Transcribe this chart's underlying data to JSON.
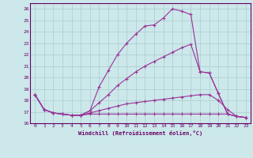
{
  "xlabel": "Windchill (Refroidissement éolien,°C)",
  "background_color": "#cce8ea",
  "grid_color": "#aacccc",
  "line_color": "#993399",
  "xlim": [
    -0.5,
    23.5
  ],
  "ylim": [
    16,
    26.5
  ],
  "yticks": [
    16,
    17,
    18,
    19,
    20,
    21,
    22,
    23,
    24,
    25,
    26
  ],
  "xticks": [
    0,
    1,
    2,
    3,
    4,
    5,
    6,
    7,
    8,
    9,
    10,
    11,
    12,
    13,
    14,
    15,
    16,
    17,
    18,
    19,
    20,
    21,
    22,
    23
  ],
  "series": [
    {
      "x": [
        0,
        1,
        2,
        3,
        4,
        5,
        6,
        7,
        8,
        9,
        10,
        11,
        12,
        13,
        14,
        15,
        16,
        17,
        18,
        19,
        20,
        21,
        22,
        23
      ],
      "y": [
        18.5,
        17.2,
        16.9,
        16.8,
        16.7,
        16.7,
        17.1,
        19.2,
        20.6,
        22.0,
        23.0,
        23.8,
        24.5,
        24.6,
        25.2,
        26.0,
        25.8,
        25.5,
        20.5,
        20.4,
        18.6,
        16.8,
        16.6,
        16.5
      ]
    },
    {
      "x": [
        0,
        1,
        2,
        3,
        4,
        5,
        6,
        7,
        8,
        9,
        10,
        11,
        12,
        13,
        14,
        15,
        16,
        17,
        18,
        19,
        20,
        21,
        22,
        23
      ],
      "y": [
        18.5,
        17.2,
        16.9,
        16.8,
        16.7,
        16.7,
        17.1,
        17.8,
        18.5,
        19.3,
        19.9,
        20.5,
        21.0,
        21.4,
        21.8,
        22.2,
        22.6,
        22.9,
        20.5,
        20.4,
        18.6,
        16.8,
        16.6,
        16.5
      ]
    },
    {
      "x": [
        0,
        1,
        2,
        3,
        4,
        5,
        6,
        7,
        8,
        9,
        10,
        11,
        12,
        13,
        14,
        15,
        16,
        17,
        18,
        19,
        20,
        21,
        22,
        23
      ],
      "y": [
        18.5,
        17.2,
        16.9,
        16.8,
        16.7,
        16.7,
        16.9,
        17.1,
        17.3,
        17.5,
        17.7,
        17.8,
        17.9,
        18.0,
        18.1,
        18.2,
        18.3,
        18.4,
        18.5,
        18.5,
        18.0,
        17.2,
        16.6,
        16.5
      ]
    },
    {
      "x": [
        0,
        1,
        2,
        3,
        4,
        5,
        6,
        7,
        8,
        9,
        10,
        11,
        12,
        13,
        14,
        15,
        16,
        17,
        18,
        19,
        20,
        21,
        22,
        23
      ],
      "y": [
        18.5,
        17.2,
        16.9,
        16.8,
        16.7,
        16.7,
        16.8,
        16.8,
        16.8,
        16.8,
        16.8,
        16.8,
        16.8,
        16.8,
        16.8,
        16.8,
        16.8,
        16.8,
        16.8,
        16.8,
        16.8,
        16.8,
        16.6,
        16.5
      ]
    }
  ]
}
